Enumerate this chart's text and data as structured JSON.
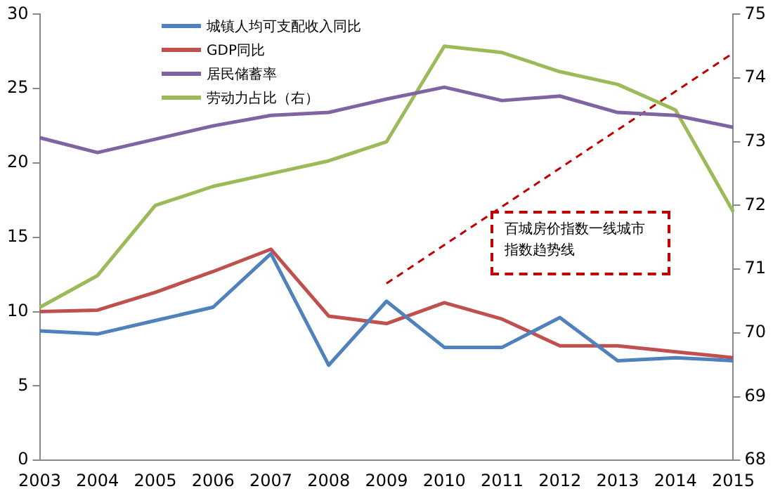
{
  "chart_data": {
    "type": "line",
    "categories": [
      "2003",
      "2004",
      "2005",
      "2006",
      "2007",
      "2008",
      "2009",
      "2010",
      "2011",
      "2012",
      "2013",
      "2014",
      "2015"
    ],
    "series": [
      {
        "name": "城镇人均可支配收入同比",
        "color": "#4f81bd",
        "values": [
          8.7,
          8.5,
          9.4,
          10.3,
          13.9,
          6.4,
          10.7,
          7.6,
          7.6,
          9.6,
          6.7,
          6.9,
          6.7
        ]
      },
      {
        "name": "GDP同比",
        "color": "#c0504d",
        "values": [
          10.0,
          10.1,
          11.3,
          12.7,
          14.2,
          9.7,
          9.2,
          10.6,
          9.5,
          7.7,
          7.7,
          7.3,
          6.9
        ]
      },
      {
        "name": "居民储蓄率",
        "color": "#8064a2",
        "values": [
          21.7,
          20.7,
          21.6,
          22.5,
          23.2,
          23.4,
          24.3,
          25.1,
          24.2,
          24.5,
          23.4,
          23.2,
          22.4
        ]
      },
      {
        "name": "劳动力占比（右）",
        "color": "#9bbb59",
        "axis": "y2",
        "values": [
          70.4,
          70.9,
          72.0,
          72.3,
          72.5,
          72.7,
          73.0,
          74.5,
          74.4,
          74.1,
          73.9,
          73.5,
          71.9
        ]
      },
      {
        "color": "#c00000",
        "line_style": "dashed",
        "values": [
          null,
          null,
          null,
          null,
          null,
          null,
          11.9,
          null,
          null,
          null,
          null,
          null,
          27.4
        ]
      }
    ],
    "ylim": [
      0,
      30
    ],
    "yticks": [
      0,
      5,
      10,
      15,
      20,
      25,
      30
    ],
    "y2lim": [
      68,
      75
    ],
    "y2ticks": [
      68,
      69,
      70,
      71,
      72,
      73,
      74,
      75
    ],
    "annotations": [
      "百城房价指数一线城市指数趋势线"
    ],
    "legend": "top",
    "grid": false,
    "marker": "none",
    "line_style": "solid"
  }
}
